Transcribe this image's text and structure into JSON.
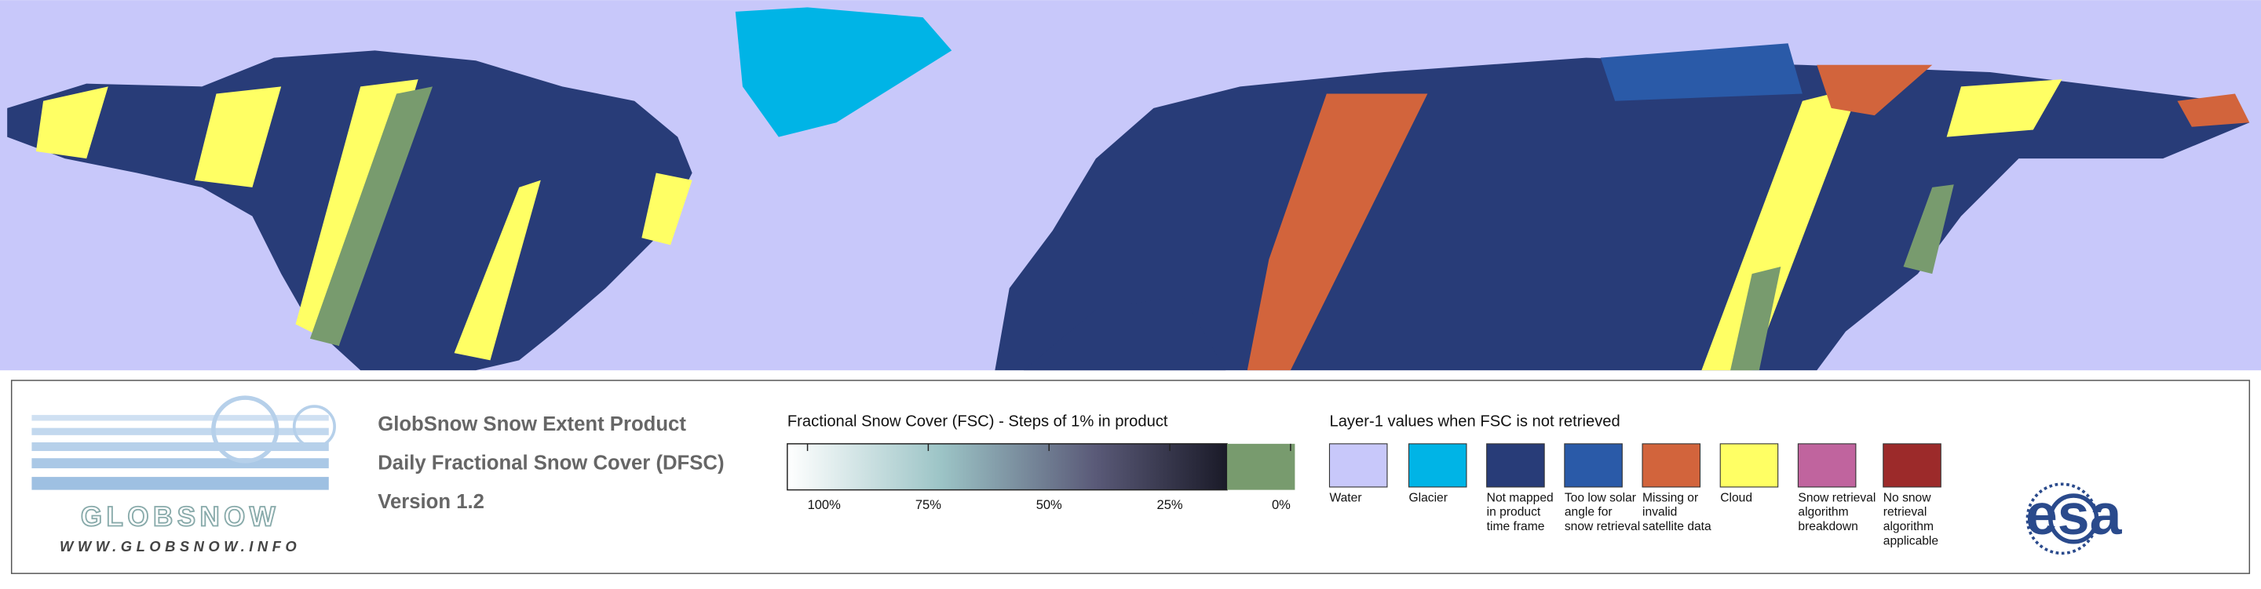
{
  "header": {
    "logo_text": "GLOBSNOW",
    "website": "WWW.GLOBSNOW.INFO",
    "title": "GlobSnow Snow Extent Product",
    "subtitle": "Daily Fractional Snow Cover (DFSC)",
    "version": "Version 1.2",
    "agency": "esa"
  },
  "fsc_legend": {
    "title": "Fractional Snow Cover (FSC) - Steps of 1% in product",
    "ticks": [
      {
        "value": 100,
        "label": "100%"
      },
      {
        "value": 75,
        "label": "75%"
      },
      {
        "value": 50,
        "label": "50%"
      },
      {
        "value": 25,
        "label": "25%"
      },
      {
        "value": 0,
        "label": "0%"
      }
    ]
  },
  "layer_legend": {
    "title": "Layer-1 values when FSC is not retrieved",
    "items": [
      {
        "label": "Water",
        "color": "#c8c8fa"
      },
      {
        "label": "Glacier",
        "color": "#00b4e6"
      },
      {
        "label": "Not mapped in product time frame",
        "color": "#283c78"
      },
      {
        "label": "Too low solar angle for snow retrieval",
        "color": "#2a5aa8"
      },
      {
        "label": "Missing or invalid satellite data",
        "color": "#d2643c"
      },
      {
        "label": "Cloud",
        "color": "#ffff64"
      },
      {
        "label": "Snow retrieval algorithm breakdown",
        "color": "#c0649e"
      },
      {
        "label": "No snow retrieval algorithm applicable",
        "color": "#9c2a2a"
      }
    ]
  }
}
